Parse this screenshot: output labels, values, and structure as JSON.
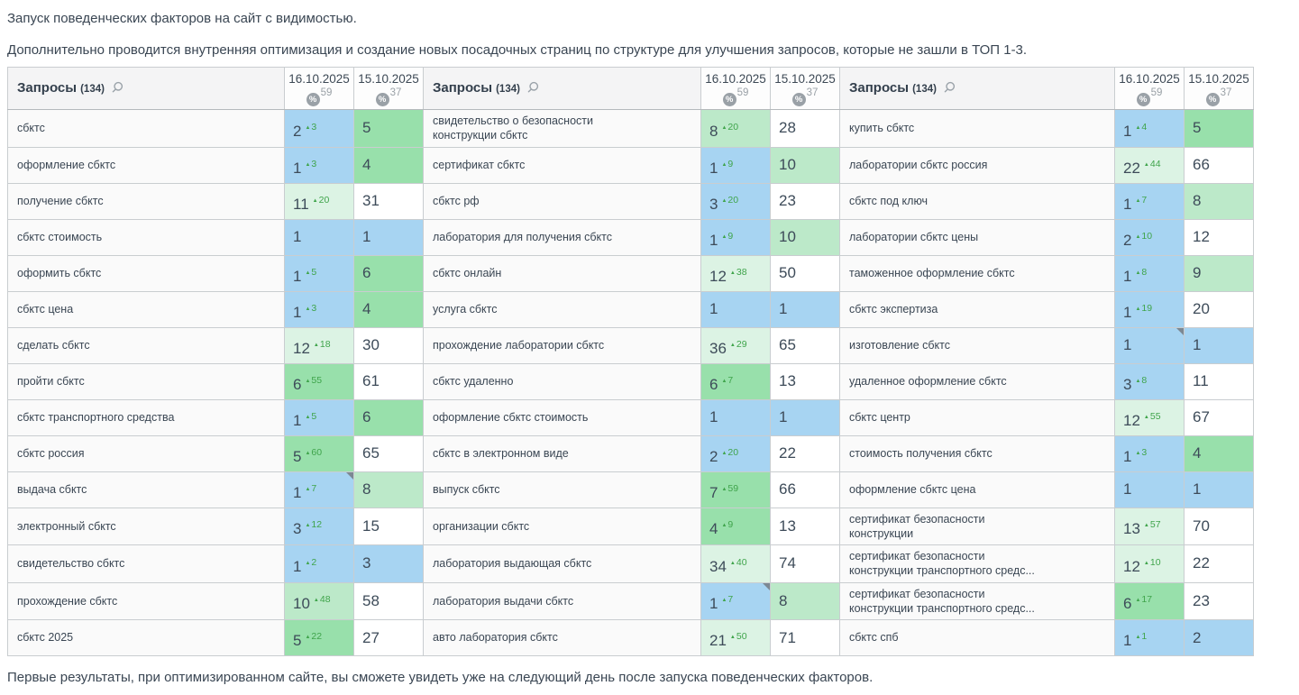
{
  "page": {
    "intro_1": "Запуск поведенческих факторов на сайт с видимостью.",
    "intro_2": "Дополнительно проводится внутренняя оптимизация и создание новых посадочных страниц по структуре для улучшения запросов, которые не зашли в ТОП 1-3.",
    "footer": "Первые результаты, при оптимизированном сайте, вы сможете увидеть уже на следующий день после запуска поведенческих факторов."
  },
  "icons": {
    "delta_up": "▲",
    "percent": "%",
    "search": "magnifier",
    "note_corner": "gray corner triangle"
  },
  "colors": {
    "top_1_3_blue": "#a7d4f2",
    "top_4_7_green": "#98e0ab",
    "top_8_10_light_green": "#bce9c9",
    "top_11_plus_pale_green": "#dcf3e4",
    "delta_green": "#3fa44b",
    "header_text": "#3d4955",
    "badge_gray": "#9aa1a7"
  },
  "table": {
    "groups": [
      {
        "header": {
          "title": "Запросы",
          "count": "(134)"
        },
        "dates": [
          {
            "label": "16.10.2025",
            "coverage": "59"
          },
          {
            "label": "15.10.2025",
            "coverage": "37"
          }
        ],
        "rows": [
          {
            "query": "сбктс",
            "cells": [
              {
                "value": "2",
                "delta": "3",
                "tier": "blue"
              },
              {
                "value": "5",
                "delta": null,
                "tier": "green"
              }
            ]
          },
          {
            "query": "оформление сбктс",
            "cells": [
              {
                "value": "1",
                "delta": "3",
                "tier": "blue"
              },
              {
                "value": "4",
                "delta": null,
                "tier": "green"
              }
            ]
          },
          {
            "query": "получение сбктс",
            "cells": [
              {
                "value": "11",
                "delta": "20",
                "tier": "pale"
              },
              {
                "value": "31",
                "delta": null,
                "tier": "white"
              }
            ]
          },
          {
            "query": "сбктс стоимость",
            "cells": [
              {
                "value": "1",
                "delta": null,
                "tier": "blue"
              },
              {
                "value": "1",
                "delta": null,
                "tier": "blue"
              }
            ]
          },
          {
            "query": "оформить сбктс",
            "cells": [
              {
                "value": "1",
                "delta": "5",
                "tier": "blue"
              },
              {
                "value": "6",
                "delta": null,
                "tier": "green"
              }
            ]
          },
          {
            "query": "сбктс цена",
            "cells": [
              {
                "value": "1",
                "delta": "3",
                "tier": "blue"
              },
              {
                "value": "4",
                "delta": null,
                "tier": "green"
              }
            ]
          },
          {
            "query": "сделать сбктс",
            "cells": [
              {
                "value": "12",
                "delta": "18",
                "tier": "pale"
              },
              {
                "value": "30",
                "delta": null,
                "tier": "white"
              }
            ]
          },
          {
            "query": "пройти сбктс",
            "cells": [
              {
                "value": "6",
                "delta": "55",
                "tier": "green"
              },
              {
                "value": "61",
                "delta": null,
                "tier": "white"
              }
            ]
          },
          {
            "query": "сбктс транспортного средства",
            "cells": [
              {
                "value": "1",
                "delta": "5",
                "tier": "blue"
              },
              {
                "value": "6",
                "delta": null,
                "tier": "green"
              }
            ]
          },
          {
            "query": "сбктс россия",
            "cells": [
              {
                "value": "5",
                "delta": "60",
                "tier": "green"
              },
              {
                "value": "65",
                "delta": null,
                "tier": "white"
              }
            ]
          },
          {
            "query": "выдача сбктс",
            "cells": [
              {
                "value": "1",
                "delta": "7",
                "tier": "blue",
                "note": true
              },
              {
                "value": "8",
                "delta": null,
                "tier": "light"
              }
            ]
          },
          {
            "query": "электронный сбктс",
            "cells": [
              {
                "value": "3",
                "delta": "12",
                "tier": "blue"
              },
              {
                "value": "15",
                "delta": null,
                "tier": "white"
              }
            ]
          },
          {
            "query": "свидетельство сбктс",
            "cells": [
              {
                "value": "1",
                "delta": "2",
                "tier": "blue"
              },
              {
                "value": "3",
                "delta": null,
                "tier": "blue"
              }
            ]
          },
          {
            "query": "прохождение сбктс",
            "cells": [
              {
                "value": "10",
                "delta": "48",
                "tier": "light"
              },
              {
                "value": "58",
                "delta": null,
                "tier": "white"
              }
            ]
          },
          {
            "query": "сбктс 2025",
            "cells": [
              {
                "value": "5",
                "delta": "22",
                "tier": "green"
              },
              {
                "value": "27",
                "delta": null,
                "tier": "white"
              }
            ]
          }
        ]
      },
      {
        "header": {
          "title": "Запросы",
          "count": "(134)"
        },
        "dates": [
          {
            "label": "16.10.2025",
            "coverage": "59"
          },
          {
            "label": "15.10.2025",
            "coverage": "37"
          }
        ],
        "rows": [
          {
            "query": "свидетельство о безопасности конструкции сбктс",
            "cells": [
              {
                "value": "8",
                "delta": "20",
                "tier": "light"
              },
              {
                "value": "28",
                "delta": null,
                "tier": "white"
              }
            ]
          },
          {
            "query": "сертификат сбктс",
            "cells": [
              {
                "value": "1",
                "delta": "9",
                "tier": "blue"
              },
              {
                "value": "10",
                "delta": null,
                "tier": "light"
              }
            ]
          },
          {
            "query": "сбктс рф",
            "cells": [
              {
                "value": "3",
                "delta": "20",
                "tier": "blue"
              },
              {
                "value": "23",
                "delta": null,
                "tier": "white"
              }
            ]
          },
          {
            "query": "лаборатория для получения сбктс",
            "cells": [
              {
                "value": "1",
                "delta": "9",
                "tier": "blue"
              },
              {
                "value": "10",
                "delta": null,
                "tier": "light"
              }
            ]
          },
          {
            "query": "сбктс онлайн",
            "cells": [
              {
                "value": "12",
                "delta": "38",
                "tier": "pale"
              },
              {
                "value": "50",
                "delta": null,
                "tier": "white"
              }
            ]
          },
          {
            "query": "услуга сбктс",
            "cells": [
              {
                "value": "1",
                "delta": null,
                "tier": "blue"
              },
              {
                "value": "1",
                "delta": null,
                "tier": "blue"
              }
            ]
          },
          {
            "query": "прохождение лаборатории сбктс",
            "cells": [
              {
                "value": "36",
                "delta": "29",
                "tier": "pale"
              },
              {
                "value": "65",
                "delta": null,
                "tier": "white"
              }
            ]
          },
          {
            "query": "сбктс удаленно",
            "cells": [
              {
                "value": "6",
                "delta": "7",
                "tier": "green"
              },
              {
                "value": "13",
                "delta": null,
                "tier": "white"
              }
            ]
          },
          {
            "query": "оформление сбктс стоимость",
            "cells": [
              {
                "value": "1",
                "delta": null,
                "tier": "blue"
              },
              {
                "value": "1",
                "delta": null,
                "tier": "blue"
              }
            ]
          },
          {
            "query": "сбктс в электронном виде",
            "cells": [
              {
                "value": "2",
                "delta": "20",
                "tier": "blue"
              },
              {
                "value": "22",
                "delta": null,
                "tier": "white"
              }
            ]
          },
          {
            "query": "выпуск сбктс",
            "cells": [
              {
                "value": "7",
                "delta": "59",
                "tier": "green"
              },
              {
                "value": "66",
                "delta": null,
                "tier": "white"
              }
            ]
          },
          {
            "query": "организации сбктс",
            "cells": [
              {
                "value": "4",
                "delta": "9",
                "tier": "green"
              },
              {
                "value": "13",
                "delta": null,
                "tier": "white"
              }
            ]
          },
          {
            "query": "лаборатория выдающая сбктс",
            "cells": [
              {
                "value": "34",
                "delta": "40",
                "tier": "pale"
              },
              {
                "value": "74",
                "delta": null,
                "tier": "white"
              }
            ]
          },
          {
            "query": "лаборатория выдачи сбктс",
            "cells": [
              {
                "value": "1",
                "delta": "7",
                "tier": "blue",
                "note": true
              },
              {
                "value": "8",
                "delta": null,
                "tier": "light"
              }
            ]
          },
          {
            "query": "авто лаборатория сбктс",
            "cells": [
              {
                "value": "21",
                "delta": "50",
                "tier": "pale"
              },
              {
                "value": "71",
                "delta": null,
                "tier": "white"
              }
            ]
          }
        ]
      },
      {
        "header": {
          "title": "Запросы",
          "count": "(134)"
        },
        "dates": [
          {
            "label": "16.10.2025",
            "coverage": "59"
          },
          {
            "label": "15.10.2025",
            "coverage": "37"
          }
        ],
        "rows": [
          {
            "query": "купить сбктс",
            "cells": [
              {
                "value": "1",
                "delta": "4",
                "tier": "blue"
              },
              {
                "value": "5",
                "delta": null,
                "tier": "green"
              }
            ]
          },
          {
            "query": "лаборатории сбктс россия",
            "cells": [
              {
                "value": "22",
                "delta": "44",
                "tier": "pale"
              },
              {
                "value": "66",
                "delta": null,
                "tier": "white"
              }
            ]
          },
          {
            "query": "сбктс под ключ",
            "cells": [
              {
                "value": "1",
                "delta": "7",
                "tier": "blue"
              },
              {
                "value": "8",
                "delta": null,
                "tier": "light"
              }
            ]
          },
          {
            "query": "лаборатории сбктс цены",
            "cells": [
              {
                "value": "2",
                "delta": "10",
                "tier": "blue"
              },
              {
                "value": "12",
                "delta": null,
                "tier": "white"
              }
            ]
          },
          {
            "query": "таможенное оформление сбктс",
            "cells": [
              {
                "value": "1",
                "delta": "8",
                "tier": "blue"
              },
              {
                "value": "9",
                "delta": null,
                "tier": "light"
              }
            ]
          },
          {
            "query": "сбктс экспертиза",
            "cells": [
              {
                "value": "1",
                "delta": "19",
                "tier": "blue"
              },
              {
                "value": "20",
                "delta": null,
                "tier": "white"
              }
            ]
          },
          {
            "query": "изготовление сбктс",
            "cells": [
              {
                "value": "1",
                "delta": null,
                "tier": "blue",
                "note": true
              },
              {
                "value": "1",
                "delta": null,
                "tier": "blue"
              }
            ]
          },
          {
            "query": "удаленное оформление сбктс",
            "cells": [
              {
                "value": "3",
                "delta": "8",
                "tier": "blue"
              },
              {
                "value": "11",
                "delta": null,
                "tier": "white"
              }
            ]
          },
          {
            "query": "сбктс центр",
            "cells": [
              {
                "value": "12",
                "delta": "55",
                "tier": "pale"
              },
              {
                "value": "67",
                "delta": null,
                "tier": "white"
              }
            ]
          },
          {
            "query": "стоимость получения сбктс",
            "cells": [
              {
                "value": "1",
                "delta": "3",
                "tier": "blue"
              },
              {
                "value": "4",
                "delta": null,
                "tier": "green"
              }
            ]
          },
          {
            "query": "оформление сбктс цена",
            "cells": [
              {
                "value": "1",
                "delta": null,
                "tier": "blue"
              },
              {
                "value": "1",
                "delta": null,
                "tier": "blue"
              }
            ]
          },
          {
            "query": "сертификат безопасности конструкции",
            "cells": [
              {
                "value": "13",
                "delta": "57",
                "tier": "pale"
              },
              {
                "value": "70",
                "delta": null,
                "tier": "white"
              }
            ]
          },
          {
            "query": "сертификат безопасности конструкции транспортного средс...",
            "cells": [
              {
                "value": "12",
                "delta": "10",
                "tier": "pale"
              },
              {
                "value": "22",
                "delta": null,
                "tier": "white"
              }
            ]
          },
          {
            "query": "сертификат безопасности конструкции транспортного средс...",
            "cells": [
              {
                "value": "6",
                "delta": "17",
                "tier": "green"
              },
              {
                "value": "23",
                "delta": null,
                "tier": "white"
              }
            ]
          },
          {
            "query": "сбктс спб",
            "cells": [
              {
                "value": "1",
                "delta": "1",
                "tier": "blue"
              },
              {
                "value": "2",
                "delta": null,
                "tier": "blue"
              }
            ]
          }
        ]
      }
    ]
  }
}
